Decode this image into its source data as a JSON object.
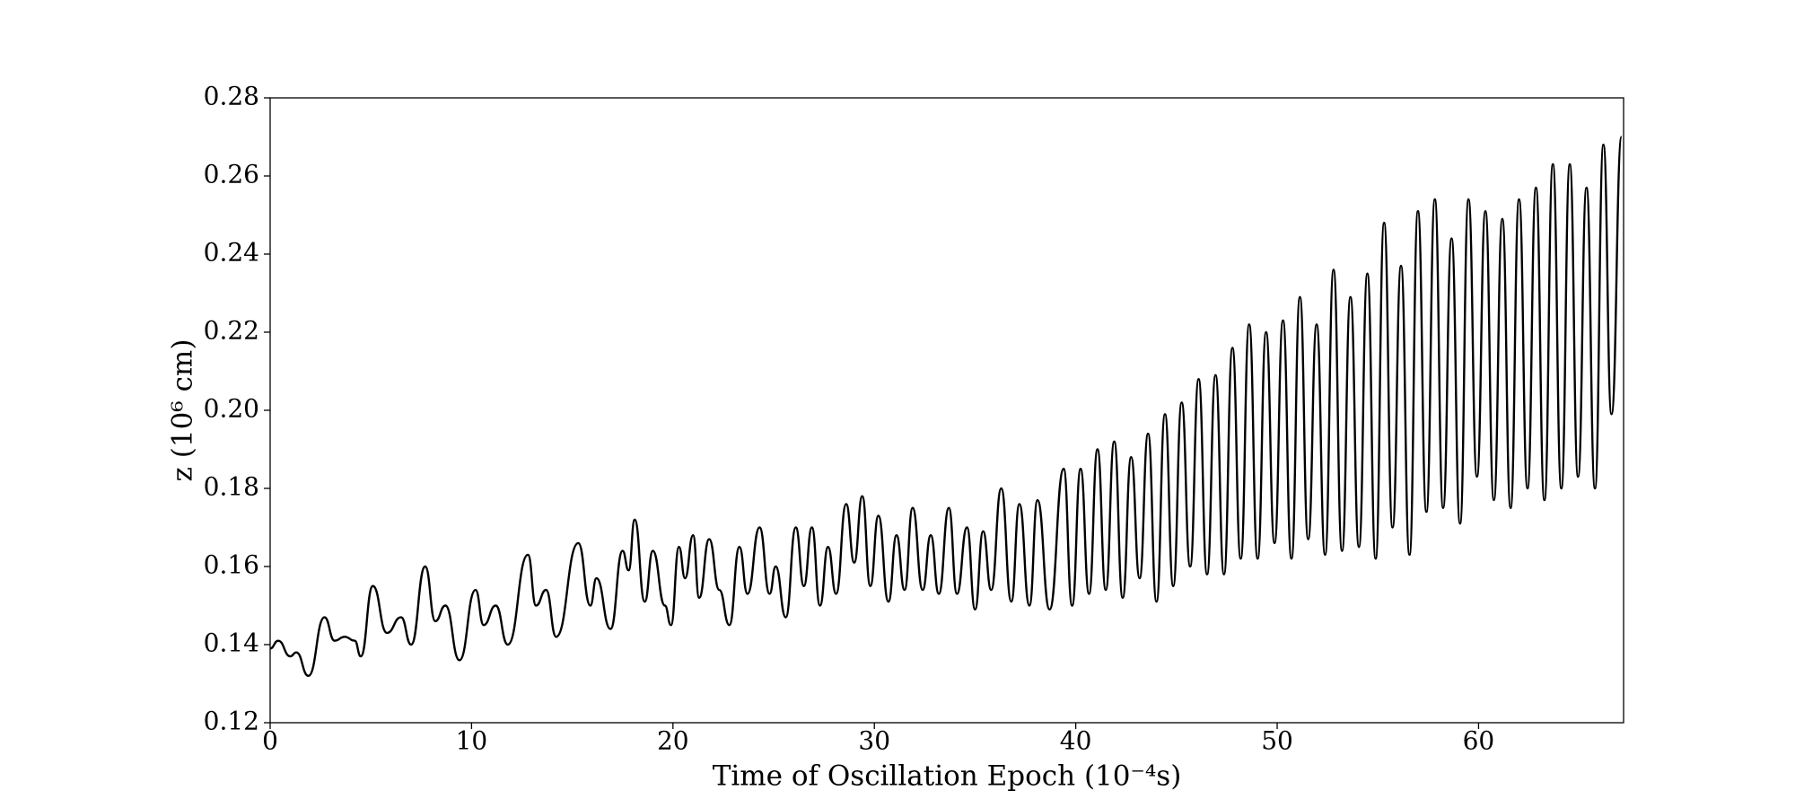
{
  "chart_data": {
    "type": "line",
    "xlabel": "Time of Oscillation Epoch (10⁻⁴s)",
    "ylabel": "z (10⁶ cm)",
    "xlim": [
      0,
      67.2
    ],
    "xticks": [
      0,
      10,
      20,
      30,
      40,
      50,
      60
    ],
    "ylim": [
      0.12,
      0.28
    ],
    "yticks": [
      0.12,
      0.14,
      0.16,
      0.18,
      {
        "value": 0.2,
        "label": "0.20"
      },
      0.22,
      0.24,
      0.26,
      0.28
    ],
    "series": [
      {
        "color": "#000000",
        "x": [
          0,
          0.4,
          1.0,
          1.3,
          1.9,
          2.7,
          3.2,
          3.7,
          4.2,
          4.5,
          5.1,
          5.8,
          6.5,
          7.0,
          7.7,
          8.2,
          8.7,
          9.4,
          10.2,
          10.6,
          11.2,
          11.8,
          12.8,
          13.2,
          13.7,
          14.2,
          15.3,
          15.9,
          16.2,
          16.9,
          17.5,
          17.8,
          18.1,
          18.6,
          19.0,
          19.6,
          19.9,
          20.3,
          20.6,
          21.0,
          21.3,
          21.8,
          22.3,
          22.8,
          23.3,
          23.7,
          24.3,
          24.8,
          25.1,
          25.6,
          26.1,
          26.5,
          26.9,
          27.3,
          27.7,
          28.1,
          28.6,
          29.0,
          29.4,
          29.8,
          30.2,
          30.7,
          31.1,
          31.5,
          31.9,
          32.4,
          32.8,
          33.2,
          33.7,
          34.1,
          34.6,
          35.0,
          35.4,
          35.8,
          36.3,
          36.8,
          37.2,
          37.7,
          38.1,
          38.7,
          39.4,
          39.82,
          40.24,
          40.66,
          41.08,
          41.49,
          41.91,
          42.33,
          42.75,
          43.17,
          43.59,
          44.01,
          44.43,
          44.84,
          45.26,
          45.68,
          46.1,
          46.52,
          46.94,
          47.36,
          47.78,
          48.19,
          48.61,
          49.03,
          49.45,
          49.87,
          50.29,
          50.71,
          51.13,
          51.54,
          51.96,
          52.38,
          52.8,
          53.22,
          53.64,
          54.06,
          54.48,
          54.89,
          55.31,
          55.73,
          56.15,
          56.57,
          56.99,
          57.41,
          57.83,
          58.24,
          58.66,
          59.08,
          59.5,
          59.92,
          60.34,
          60.76,
          61.18,
          61.59,
          62.01,
          62.43,
          62.85,
          63.27,
          63.69,
          64.11,
          64.53,
          64.94,
          65.36,
          65.78,
          66.2,
          66.6,
          67.1
        ],
        "values": [
          0.139,
          0.141,
          0.137,
          0.138,
          0.132,
          0.147,
          0.141,
          0.142,
          0.141,
          0.137,
          0.155,
          0.143,
          0.147,
          0.14,
          0.16,
          0.146,
          0.15,
          0.136,
          0.154,
          0.145,
          0.15,
          0.14,
          0.163,
          0.15,
          0.154,
          0.142,
          0.166,
          0.15,
          0.157,
          0.144,
          0.164,
          0.159,
          0.172,
          0.151,
          0.164,
          0.15,
          0.145,
          0.165,
          0.157,
          0.168,
          0.152,
          0.167,
          0.154,
          0.145,
          0.165,
          0.153,
          0.17,
          0.153,
          0.16,
          0.147,
          0.17,
          0.155,
          0.17,
          0.15,
          0.165,
          0.153,
          0.176,
          0.161,
          0.178,
          0.155,
          0.173,
          0.151,
          0.168,
          0.154,
          0.175,
          0.154,
          0.168,
          0.153,
          0.175,
          0.153,
          0.17,
          0.149,
          0.169,
          0.154,
          0.18,
          0.151,
          0.176,
          0.15,
          0.177,
          0.149,
          0.185,
          0.15,
          0.185,
          0.153,
          0.19,
          0.154,
          0.192,
          0.152,
          0.188,
          0.157,
          0.194,
          0.151,
          0.199,
          0.155,
          0.202,
          0.16,
          0.208,
          0.158,
          0.209,
          0.158,
          0.216,
          0.162,
          0.222,
          0.162,
          0.22,
          0.166,
          0.223,
          0.162,
          0.229,
          0.167,
          0.222,
          0.163,
          0.236,
          0.164,
          0.229,
          0.165,
          0.235,
          0.162,
          0.248,
          0.17,
          0.237,
          0.163,
          0.251,
          0.174,
          0.254,
          0.175,
          0.244,
          0.171,
          0.254,
          0.183,
          0.251,
          0.177,
          0.249,
          0.175,
          0.254,
          0.18,
          0.257,
          0.177,
          0.263,
          0.18,
          0.263,
          0.183,
          0.257,
          0.18,
          0.268,
          0.199,
          0.27
        ]
      }
    ]
  }
}
